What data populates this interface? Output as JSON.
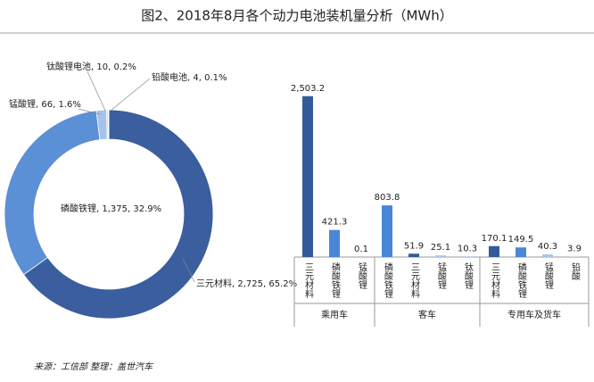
{
  "title": "图2、2018年8月各个动力电池装机量分析（MWh）",
  "source": "来源：工信部 整理：盖世汽车",
  "chart_data": [
    {
      "type": "donut",
      "slices": [
        {
          "label": "三元材料, 2,725, 65.2%",
          "value": 2725,
          "color": "#3a5e9e"
        },
        {
          "label": "磷酸铁锂, 1,375, 32.9%",
          "value": 1375,
          "color": "#5b8fd6"
        },
        {
          "label": "锰酸锂, 66, 1.6%",
          "value": 66,
          "color": "#a5c2ea"
        },
        {
          "label": "钛酸锂电池, 10, 0.2%",
          "value": 10,
          "color": "#c3d6f0"
        },
        {
          "label": "铅酸电池, 4, 0.1%",
          "value": 4,
          "color": "#dfe9f7"
        }
      ]
    },
    {
      "type": "grouped-bar",
      "groups": [
        {
          "name": "乘用车",
          "categories": [
            "三元材料",
            "磷酸铁锂",
            "锰酸锂"
          ],
          "values": [
            2503.2,
            421.3,
            0.1
          ],
          "value_labels": [
            "2,503.2",
            "421.3",
            "0.1"
          ],
          "colors": [
            "#335b9c",
            "#4a86d6",
            "#a9c4e8"
          ]
        },
        {
          "name": "客车",
          "categories": [
            "磷酸铁锂",
            "三元材料",
            "锰酸锂",
            "钛酸锂"
          ],
          "values": [
            803.8,
            51.9,
            25.1,
            10.3
          ],
          "value_labels": [
            "803.8",
            "51.9",
            "25.1",
            "10.3"
          ],
          "colors": [
            "#4a86d6",
            "#335b9c",
            "#a9c4e8",
            "#a9c4e8"
          ]
        },
        {
          "name": "专用车及货车",
          "categories": [
            "三元材料",
            "磷酸铁锂",
            "锰酸锂",
            "铅酸"
          ],
          "values": [
            170.1,
            149.5,
            40.3,
            3.9
          ],
          "value_labels": [
            "170.1",
            "149.5",
            "40.3",
            "3.9"
          ],
          "colors": [
            "#335b9c",
            "#4a86d6",
            "#a9c4e8",
            "#a9c4e8"
          ]
        }
      ]
    }
  ]
}
